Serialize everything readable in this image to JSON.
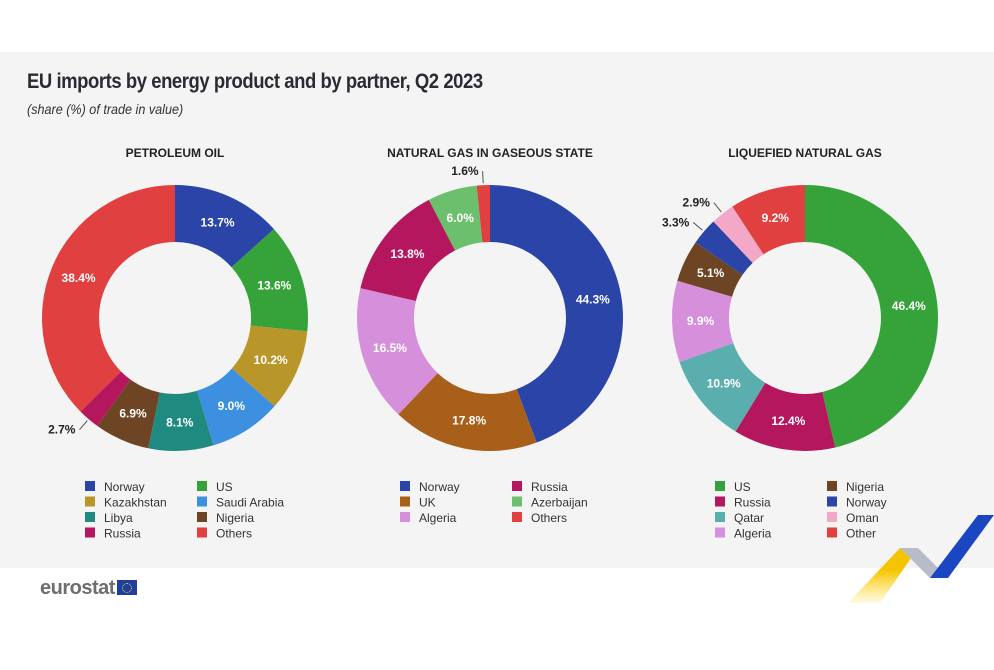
{
  "title": "EU imports by energy product and by partner, Q2 2023",
  "subtitle": "(share (%) of trade in value)",
  "logo": "eurostat",
  "chart_data": [
    {
      "type": "pie",
      "donut": true,
      "title": "PETROLEUM OIL",
      "categories": [
        "Norway",
        "US",
        "Kazakhstan",
        "Saudi Arabia",
        "Libya",
        "Nigeria",
        "Russia",
        "Others"
      ],
      "values": [
        13.7,
        13.6,
        10.2,
        9.0,
        8.1,
        6.9,
        2.7,
        38.4
      ],
      "labels": [
        "13.7%",
        "13.6%",
        "10.2%",
        "9.0%",
        "8.1%",
        "6.9%",
        "2.7%",
        "38.4%"
      ],
      "colors": [
        "#2a44a8",
        "#36a33a",
        "#b8962a",
        "#3d8fe0",
        "#1f8a80",
        "#6e4524",
        "#b5175f",
        "#e0403f"
      ],
      "legend_order": [
        0,
        2,
        4,
        6,
        1,
        3,
        5,
        7
      ]
    },
    {
      "type": "pie",
      "donut": true,
      "title": "NATURAL GAS IN GASEOUS STATE",
      "categories": [
        "Norway",
        "UK",
        "Algeria",
        "Russia",
        "Azerbaijan",
        "Others"
      ],
      "values": [
        44.3,
        17.8,
        16.5,
        13.8,
        6.0,
        1.6
      ],
      "labels": [
        "44.3%",
        "17.8%",
        "16.5%",
        "13.8%",
        "6.0%",
        "1.6%"
      ],
      "colors": [
        "#2a44a8",
        "#a85f1a",
        "#d58fdb",
        "#b5175f",
        "#6cbf6c",
        "#e0403f"
      ],
      "legend_order": [
        0,
        1,
        2,
        3,
        4,
        5
      ]
    },
    {
      "type": "pie",
      "donut": true,
      "title": "LIQUEFIED NATURAL GAS",
      "categories": [
        "US",
        "Russia",
        "Qatar",
        "Algeria",
        "Nigeria",
        "Norway",
        "Oman",
        "Other"
      ],
      "values": [
        46.4,
        12.4,
        10.9,
        9.9,
        5.1,
        3.3,
        2.9,
        9.2
      ],
      "labels": [
        "46.4%",
        "12.4%",
        "10.9%",
        "9.9%",
        "5.1%",
        "3.3%",
        "2.9%",
        "9.2%"
      ],
      "colors": [
        "#36a33a",
        "#b5175f",
        "#5aaead",
        "#d58fdb",
        "#6e4524",
        "#2a44a8",
        "#f4a8c8",
        "#e0403f"
      ],
      "legend_order": [
        0,
        1,
        2,
        3,
        4,
        5,
        6,
        7
      ]
    }
  ]
}
